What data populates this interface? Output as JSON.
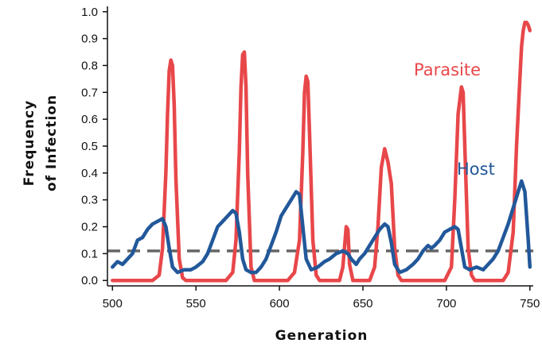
{
  "chart_data": {
    "type": "line",
    "xlabel": "Generation",
    "ylabel_lines": [
      "Frequency",
      "of Infection"
    ],
    "xlim": [
      497,
      752
    ],
    "ylim": [
      -0.02,
      1.02
    ],
    "x_ticks": [
      500,
      550,
      600,
      650,
      700,
      750
    ],
    "y_ticks": [
      0.0,
      0.1,
      0.2,
      0.3,
      0.4,
      0.5,
      0.6,
      0.7,
      0.8,
      0.9,
      1.0
    ],
    "y_tick_labels": [
      "0.0",
      "0.1",
      "0.2",
      "0.3",
      "0.4",
      "0.5",
      "0.6",
      "0.7",
      "0.8",
      "0.9",
      "1.0"
    ],
    "grid": false,
    "reference_line": {
      "y": 0.11,
      "style": "dashed",
      "color": "#666666"
    },
    "series": [
      {
        "name": "Parasite",
        "color": "#e8474a",
        "points": [
          [
            500,
            0.0
          ],
          [
            524,
            0.0
          ],
          [
            528,
            0.02
          ],
          [
            530,
            0.12
          ],
          [
            532,
            0.4
          ],
          [
            533,
            0.62
          ],
          [
            534,
            0.78
          ],
          [
            535,
            0.82
          ],
          [
            536,
            0.8
          ],
          [
            537,
            0.65
          ],
          [
            538,
            0.38
          ],
          [
            540,
            0.08
          ],
          [
            542,
            0.01
          ],
          [
            544,
            0.0
          ],
          [
            568,
            0.0
          ],
          [
            572,
            0.03
          ],
          [
            574,
            0.15
          ],
          [
            576,
            0.48
          ],
          [
            577,
            0.72
          ],
          [
            578,
            0.84
          ],
          [
            579,
            0.85
          ],
          [
            580,
            0.72
          ],
          [
            581,
            0.4
          ],
          [
            583,
            0.05
          ],
          [
            585,
            0.0
          ],
          [
            605,
            0.0
          ],
          [
            609,
            0.03
          ],
          [
            612,
            0.15
          ],
          [
            614,
            0.48
          ],
          [
            615,
            0.7
          ],
          [
            616,
            0.76
          ],
          [
            617,
            0.74
          ],
          [
            618,
            0.55
          ],
          [
            620,
            0.15
          ],
          [
            622,
            0.02
          ],
          [
            624,
            0.0
          ],
          [
            636,
            0.0
          ],
          [
            638,
            0.05
          ],
          [
            640,
            0.2
          ],
          [
            641,
            0.19
          ],
          [
            642,
            0.06
          ],
          [
            644,
            0.0
          ],
          [
            654,
            0.0
          ],
          [
            657,
            0.05
          ],
          [
            659,
            0.2
          ],
          [
            661,
            0.42
          ],
          [
            663,
            0.49
          ],
          [
            665,
            0.44
          ],
          [
            667,
            0.36
          ],
          [
            669,
            0.12
          ],
          [
            671,
            0.02
          ],
          [
            673,
            0.0
          ],
          [
            699,
            0.0
          ],
          [
            703,
            0.05
          ],
          [
            705,
            0.3
          ],
          [
            707,
            0.62
          ],
          [
            709,
            0.72
          ],
          [
            710,
            0.7
          ],
          [
            711,
            0.5
          ],
          [
            713,
            0.12
          ],
          [
            715,
            0.02
          ],
          [
            717,
            0.0
          ],
          [
            734,
            0.0
          ],
          [
            737,
            0.03
          ],
          [
            740,
            0.18
          ],
          [
            742,
            0.5
          ],
          [
            744,
            0.75
          ],
          [
            745,
            0.87
          ],
          [
            746,
            0.93
          ],
          [
            747,
            0.96
          ],
          [
            748,
            0.96
          ],
          [
            749,
            0.95
          ],
          [
            750,
            0.93
          ]
        ]
      },
      {
        "name": "Host",
        "color": "#22589a",
        "points": [
          [
            500,
            0.05
          ],
          [
            503,
            0.07
          ],
          [
            506,
            0.06
          ],
          [
            509,
            0.08
          ],
          [
            512,
            0.1
          ],
          [
            515,
            0.15
          ],
          [
            518,
            0.16
          ],
          [
            521,
            0.19
          ],
          [
            524,
            0.21
          ],
          [
            527,
            0.22
          ],
          [
            530,
            0.23
          ],
          [
            532,
            0.2
          ],
          [
            534,
            0.12
          ],
          [
            536,
            0.05
          ],
          [
            539,
            0.03
          ],
          [
            543,
            0.04
          ],
          [
            547,
            0.04
          ],
          [
            550,
            0.05
          ],
          [
            554,
            0.07
          ],
          [
            557,
            0.1
          ],
          [
            560,
            0.15
          ],
          [
            563,
            0.2
          ],
          [
            566,
            0.22
          ],
          [
            569,
            0.24
          ],
          [
            572,
            0.26
          ],
          [
            574,
            0.25
          ],
          [
            576,
            0.18
          ],
          [
            578,
            0.08
          ],
          [
            580,
            0.04
          ],
          [
            583,
            0.03
          ],
          [
            586,
            0.03
          ],
          [
            589,
            0.05
          ],
          [
            592,
            0.08
          ],
          [
            595,
            0.13
          ],
          [
            598,
            0.18
          ],
          [
            601,
            0.24
          ],
          [
            604,
            0.27
          ],
          [
            607,
            0.3
          ],
          [
            610,
            0.33
          ],
          [
            612,
            0.32
          ],
          [
            614,
            0.2
          ],
          [
            616,
            0.08
          ],
          [
            619,
            0.04
          ],
          [
            623,
            0.05
          ],
          [
            627,
            0.07
          ],
          [
            630,
            0.08
          ],
          [
            634,
            0.1
          ],
          [
            638,
            0.11
          ],
          [
            641,
            0.1
          ],
          [
            643,
            0.08
          ],
          [
            646,
            0.06
          ],
          [
            648,
            0.08
          ],
          [
            651,
            0.1
          ],
          [
            654,
            0.13
          ],
          [
            657,
            0.16
          ],
          [
            660,
            0.19
          ],
          [
            663,
            0.21
          ],
          [
            665,
            0.2
          ],
          [
            667,
            0.14
          ],
          [
            669,
            0.06
          ],
          [
            672,
            0.03
          ],
          [
            676,
            0.04
          ],
          [
            680,
            0.06
          ],
          [
            683,
            0.08
          ],
          [
            686,
            0.11
          ],
          [
            689,
            0.13
          ],
          [
            691,
            0.12
          ],
          [
            693,
            0.13
          ],
          [
            696,
            0.15
          ],
          [
            699,
            0.18
          ],
          [
            702,
            0.19
          ],
          [
            705,
            0.2
          ],
          [
            707,
            0.19
          ],
          [
            709,
            0.12
          ],
          [
            711,
            0.05
          ],
          [
            714,
            0.04
          ],
          [
            718,
            0.05
          ],
          [
            722,
            0.04
          ],
          [
            725,
            0.06
          ],
          [
            728,
            0.08
          ],
          [
            731,
            0.11
          ],
          [
            734,
            0.16
          ],
          [
            737,
            0.21
          ],
          [
            740,
            0.27
          ],
          [
            743,
            0.33
          ],
          [
            745,
            0.37
          ],
          [
            747,
            0.33
          ],
          [
            749,
            0.15
          ],
          [
            750,
            0.05
          ]
        ]
      }
    ]
  }
}
